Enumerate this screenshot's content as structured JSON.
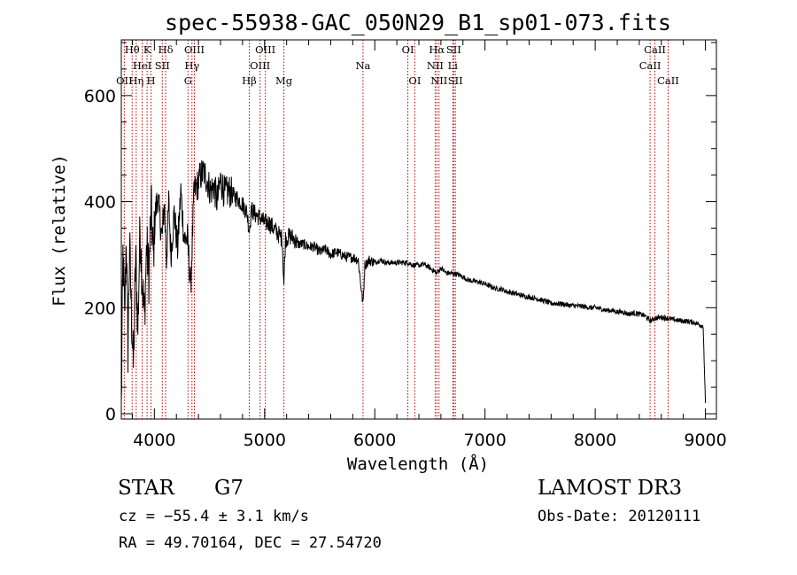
{
  "chart_data": {
    "type": "line",
    "title": "spec-55938-GAC_050N29_B1_sp01-073.fits",
    "xlabel": "Wavelength (Å)",
    "ylabel": "Flux (relative)",
    "xlim": [
      3700,
      9100
    ],
    "ylim": [
      -10,
      705
    ],
    "xticks": [
      4000,
      5000,
      6000,
      7000,
      8000,
      9000
    ],
    "xtick_labels": [
      "4000",
      "5000",
      "6000",
      "7000",
      "8000",
      "9000"
    ],
    "yticks": [
      0,
      200,
      400,
      600
    ],
    "ytick_labels": [
      "0",
      "200",
      "400",
      "600"
    ],
    "series": [
      {
        "name": "spectrum",
        "x": [
          3700,
          3715,
          3730,
          3745,
          3760,
          3775,
          3790,
          3810,
          3830,
          3850,
          3870,
          3890,
          3910,
          3930,
          3950,
          3970,
          3990,
          4010,
          4030,
          4050,
          4070,
          4090,
          4110,
          4130,
          4150,
          4180,
          4210,
          4240,
          4270,
          4300,
          4330,
          4360,
          4390,
          4420,
          4450,
          4480,
          4510,
          4540,
          4570,
          4600,
          4640,
          4680,
          4720,
          4760,
          4800,
          4840,
          4861,
          4880,
          4920,
          4960,
          5000,
          5040,
          5080,
          5120,
          5160,
          5175,
          5190,
          5230,
          5270,
          5300,
          5350,
          5400,
          5450,
          5500,
          5550,
          5600,
          5650,
          5700,
          5750,
          5800,
          5850,
          5893,
          5910,
          5950,
          6000,
          6050,
          6100,
          6150,
          6200,
          6250,
          6300,
          6350,
          6400,
          6450,
          6500,
          6563,
          6600,
          6650,
          6700,
          6750,
          6800,
          6850,
          6900,
          6950,
          7000,
          7050,
          7100,
          7150,
          7200,
          7250,
          7300,
          7350,
          7400,
          7450,
          7500,
          7550,
          7600,
          7650,
          7700,
          7750,
          7800,
          7850,
          7900,
          7950,
          8000,
          8050,
          8100,
          8150,
          8200,
          8250,
          8300,
          8350,
          8400,
          8450,
          8498,
          8542,
          8600,
          8662,
          8700,
          8750,
          8800,
          8850,
          8900,
          8950,
          8980,
          9000
        ],
        "y": [
          10,
          300,
          180,
          340,
          120,
          320,
          200,
          90,
          300,
          160,
          350,
          250,
          180,
          320,
          260,
          390,
          300,
          380,
          410,
          370,
          330,
          400,
          290,
          400,
          300,
          380,
          310,
          420,
          330,
          330,
          240,
          420,
          430,
          450,
          455,
          440,
          420,
          430,
          400,
          440,
          415,
          420,
          410,
          405,
          395,
          380,
          345,
          385,
          375,
          370,
          360,
          360,
          350,
          340,
          330,
          245,
          330,
          335,
          330,
          320,
          320,
          315,
          315,
          305,
          310,
          300,
          305,
          300,
          295,
          295,
          290,
          205,
          280,
          290,
          285,
          290,
          285,
          285,
          285,
          285,
          285,
          280,
          280,
          282,
          275,
          265,
          275,
          265,
          265,
          263,
          258,
          252,
          250,
          248,
          245,
          240,
          236,
          235,
          230,
          228,
          225,
          222,
          220,
          218,
          215,
          212,
          208,
          208,
          207,
          205,
          204,
          203,
          202,
          200,
          200,
          198,
          195,
          195,
          192,
          192,
          188,
          190,
          188,
          185,
          175,
          180,
          182,
          180,
          178,
          176,
          175,
          174,
          172,
          168,
          165,
          20
        ]
      }
    ],
    "spectral_lines": [
      {
        "label": "OII",
        "wavelength": 3727,
        "row": 2
      },
      {
        "label": "Hθ",
        "wavelength": 3798,
        "row": 0
      },
      {
        "label": "Hη",
        "wavelength": 3835,
        "row": 2
      },
      {
        "label": "HeI",
        "wavelength": 3889,
        "row": 1
      },
      {
        "label": "K",
        "wavelength": 3934,
        "row": 0
      },
      {
        "label": "H",
        "wavelength": 3969,
        "row": 2
      },
      {
        "label": "SII",
        "wavelength": 4072,
        "row": 1
      },
      {
        "label": "Hδ",
        "wavelength": 4102,
        "row": 0
      },
      {
        "label": "G",
        "wavelength": 4305,
        "row": 2
      },
      {
        "label": "Hγ",
        "wavelength": 4341,
        "row": 1
      },
      {
        "label": "OIII",
        "wavelength": 4363,
        "row": 0
      },
      {
        "label": "Hβ",
        "wavelength": 4861,
        "row": 2
      },
      {
        "label": "OIII",
        "wavelength": 4959,
        "row": 1
      },
      {
        "label": "OIII",
        "wavelength": 5007,
        "row": 0
      },
      {
        "label": "Mg",
        "wavelength": 5175,
        "row": 2
      },
      {
        "label": "Na",
        "wavelength": 5893,
        "row": 1
      },
      {
        "label": "OI",
        "wavelength": 6300,
        "row": 0
      },
      {
        "label": "OI",
        "wavelength": 6363,
        "row": 2
      },
      {
        "label": "NII",
        "wavelength": 6548,
        "row": 1
      },
      {
        "label": "Hα",
        "wavelength": 6563,
        "row": 0
      },
      {
        "label": "NII",
        "wavelength": 6583,
        "row": 2
      },
      {
        "label": "Li",
        "wavelength": 6708,
        "row": 1
      },
      {
        "label": "SII",
        "wavelength": 6716,
        "row": 0
      },
      {
        "label": "SII",
        "wavelength": 6731,
        "row": 2
      },
      {
        "label": "CaII",
        "wavelength": 8498,
        "row": 1
      },
      {
        "label": "CaII",
        "wavelength": 8542,
        "row": 0
      },
      {
        "label": "CaII",
        "wavelength": 8662,
        "row": 2
      }
    ]
  },
  "info": {
    "object_class": "STAR",
    "subclass": "G7",
    "survey": "LAMOST DR3",
    "redshift_line": "cz = −55.4 ± 3.1 km/s",
    "obs_date": "Obs-Date: 20120111",
    "coords": "RA =  49.70164, DEC =  27.54720"
  },
  "colors": {
    "spectrum": "#000000",
    "line_markers": "#c00000",
    "axes": "#000000"
  }
}
